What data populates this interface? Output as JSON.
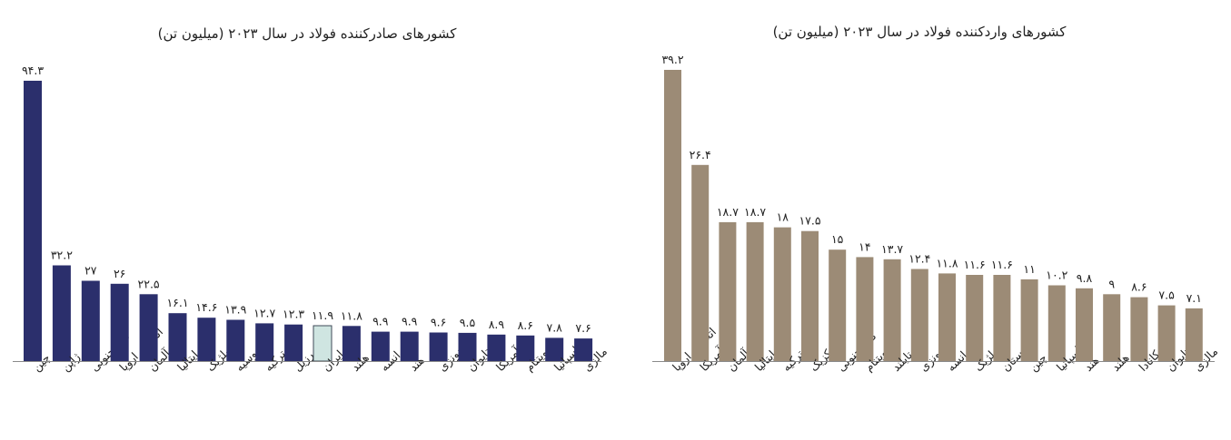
{
  "chart_data": [
    {
      "type": "bar",
      "title": "کشورهای صادرکننده فولاد در سال ۲۰۲۳ (میلیون تن)",
      "categories": [
        "چین",
        "ژاپن",
        "کره جنوبی",
        "اتحادیه اروپا",
        "آلمان",
        "ایتالیا",
        "بلژیک",
        "روسیه",
        "ترکیه",
        "برزیل",
        "ایران",
        "هلند",
        "فرانسه",
        "هند",
        "اندونزی",
        "تایوان",
        "آمریکا",
        "ویتنام",
        "اسپانیا",
        "مالزی"
      ],
      "values": [
        94.3,
        32.2,
        27,
        26,
        22.5,
        16.1,
        14.6,
        13.9,
        12.7,
        12.3,
        11.9,
        11.8,
        9.9,
        9.9,
        9.6,
        9.5,
        8.9,
        8.6,
        7.8,
        7.6
      ],
      "value_labels": [
        "۹۴.۳",
        "۳۲.۲",
        "۲۷",
        "۲۶",
        "۲۲.۵",
        "۱۶.۱",
        "۱۴.۶",
        "۱۳.۹",
        "۱۲.۷",
        "۱۲.۳",
        "۱۱.۹",
        "۱۱.۸",
        "۹.۹",
        "۹.۹",
        "۹.۶",
        "۹.۵",
        "۸.۹",
        "۸.۶",
        "۷.۸",
        "۷.۶"
      ],
      "ylim": [
        0,
        94.3
      ],
      "grid": false,
      "colors": {
        "default": "#2b2f6c",
        "highlight": "#cfe5e1",
        "highlight_category": "ایران"
      }
    },
    {
      "type": "bar",
      "title": "کشورهای واردکننده فولاد در سال ۲۰۲۳ (میلیون تن)",
      "categories": [
        "اتحادیه اروپا",
        "آمریکا",
        "آلمان",
        "ایتالیا",
        "ترکیه",
        "مکزیک",
        "کره جنوبی",
        "ویتنام",
        "تایلند",
        "اندونزی",
        "فرانسه",
        "بلژیک",
        "لهستان",
        "چین",
        "اسپانیا",
        "هند",
        "هلند",
        "کانادا",
        "تایوان",
        "مالزی"
      ],
      "values": [
        39.2,
        26.4,
        18.7,
        18.7,
        18,
        17.5,
        15,
        14,
        13.7,
        12.4,
        11.8,
        11.6,
        11.6,
        11,
        10.2,
        9.8,
        9,
        8.6,
        7.5,
        7.1
      ],
      "value_labels": [
        "۳۹.۲",
        "۲۶.۴",
        "۱۸.۷",
        "۱۸.۷",
        "۱۸",
        "۱۷.۵",
        "۱۵",
        "۱۴",
        "۱۳.۷",
        "۱۲.۴",
        "۱۱.۸",
        "۱۱.۶",
        "۱۱.۶",
        "۱۱",
        "۱۰.۲",
        "۹.۸",
        "۹",
        "۸.۶",
        "۷.۵",
        "۷.۱"
      ],
      "ylim": [
        0,
        39.2
      ],
      "grid": false,
      "colors": {
        "default": "#9c8b76"
      }
    }
  ]
}
